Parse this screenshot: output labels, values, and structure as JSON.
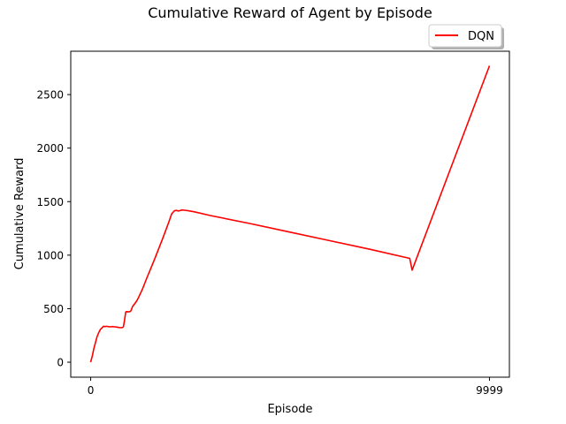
{
  "chart_data": {
    "type": "line",
    "title": "Cumulative Reward of Agent by Episode",
    "xlabel": "Episode",
    "ylabel": "Cumulative Reward",
    "xlim": [
      -500,
      10499
    ],
    "ylim": [
      -140,
      2905
    ],
    "x_ticks": [
      0,
      9999
    ],
    "x_tick_labels": [
      "0",
      "9999"
    ],
    "y_ticks": [
      0,
      500,
      1000,
      1500,
      2000,
      2500
    ],
    "y_tick_labels": [
      "0",
      "500",
      "1000",
      "1500",
      "2000",
      "2500"
    ],
    "grid": false,
    "legend": {
      "position": "top-right, above plot",
      "entries": [
        "DQN"
      ]
    },
    "series": [
      {
        "name": "DQN",
        "color": "#ff0000",
        "points": [
          [
            0,
            0
          ],
          [
            40,
            60
          ],
          [
            80,
            130
          ],
          [
            120,
            185
          ],
          [
            160,
            240
          ],
          [
            200,
            275
          ],
          [
            240,
            305
          ],
          [
            280,
            320
          ],
          [
            320,
            335
          ],
          [
            360,
            333
          ],
          [
            400,
            335
          ],
          [
            450,
            332
          ],
          [
            500,
            330
          ],
          [
            550,
            333
          ],
          [
            600,
            330
          ],
          [
            650,
            328
          ],
          [
            700,
            325
          ],
          [
            750,
            322
          ],
          [
            800,
            325
          ],
          [
            820,
            330
          ],
          [
            840,
            370
          ],
          [
            860,
            420
          ],
          [
            880,
            470
          ],
          [
            900,
            472
          ],
          [
            950,
            470
          ],
          [
            1000,
            475
          ],
          [
            1020,
            490
          ],
          [
            1050,
            520
          ],
          [
            1100,
            545
          ],
          [
            1150,
            570
          ],
          [
            1200,
            605
          ],
          [
            1250,
            645
          ],
          [
            1300,
            685
          ],
          [
            1400,
            780
          ],
          [
            1600,
            960
          ],
          [
            1800,
            1150
          ],
          [
            1950,
            1300
          ],
          [
            2030,
            1385
          ],
          [
            2100,
            1415
          ],
          [
            2150,
            1418
          ],
          [
            2200,
            1412
          ],
          [
            2250,
            1418
          ],
          [
            2300,
            1422
          ],
          [
            2350,
            1420
          ],
          [
            2450,
            1415
          ],
          [
            2600,
            1405
          ],
          [
            3000,
            1370
          ],
          [
            4000,
            1295
          ],
          [
            5000,
            1215
          ],
          [
            6000,
            1135
          ],
          [
            7000,
            1055
          ],
          [
            8000,
            970
          ],
          [
            8060,
            860
          ],
          [
            9999,
            2770
          ]
        ]
      }
    ]
  }
}
